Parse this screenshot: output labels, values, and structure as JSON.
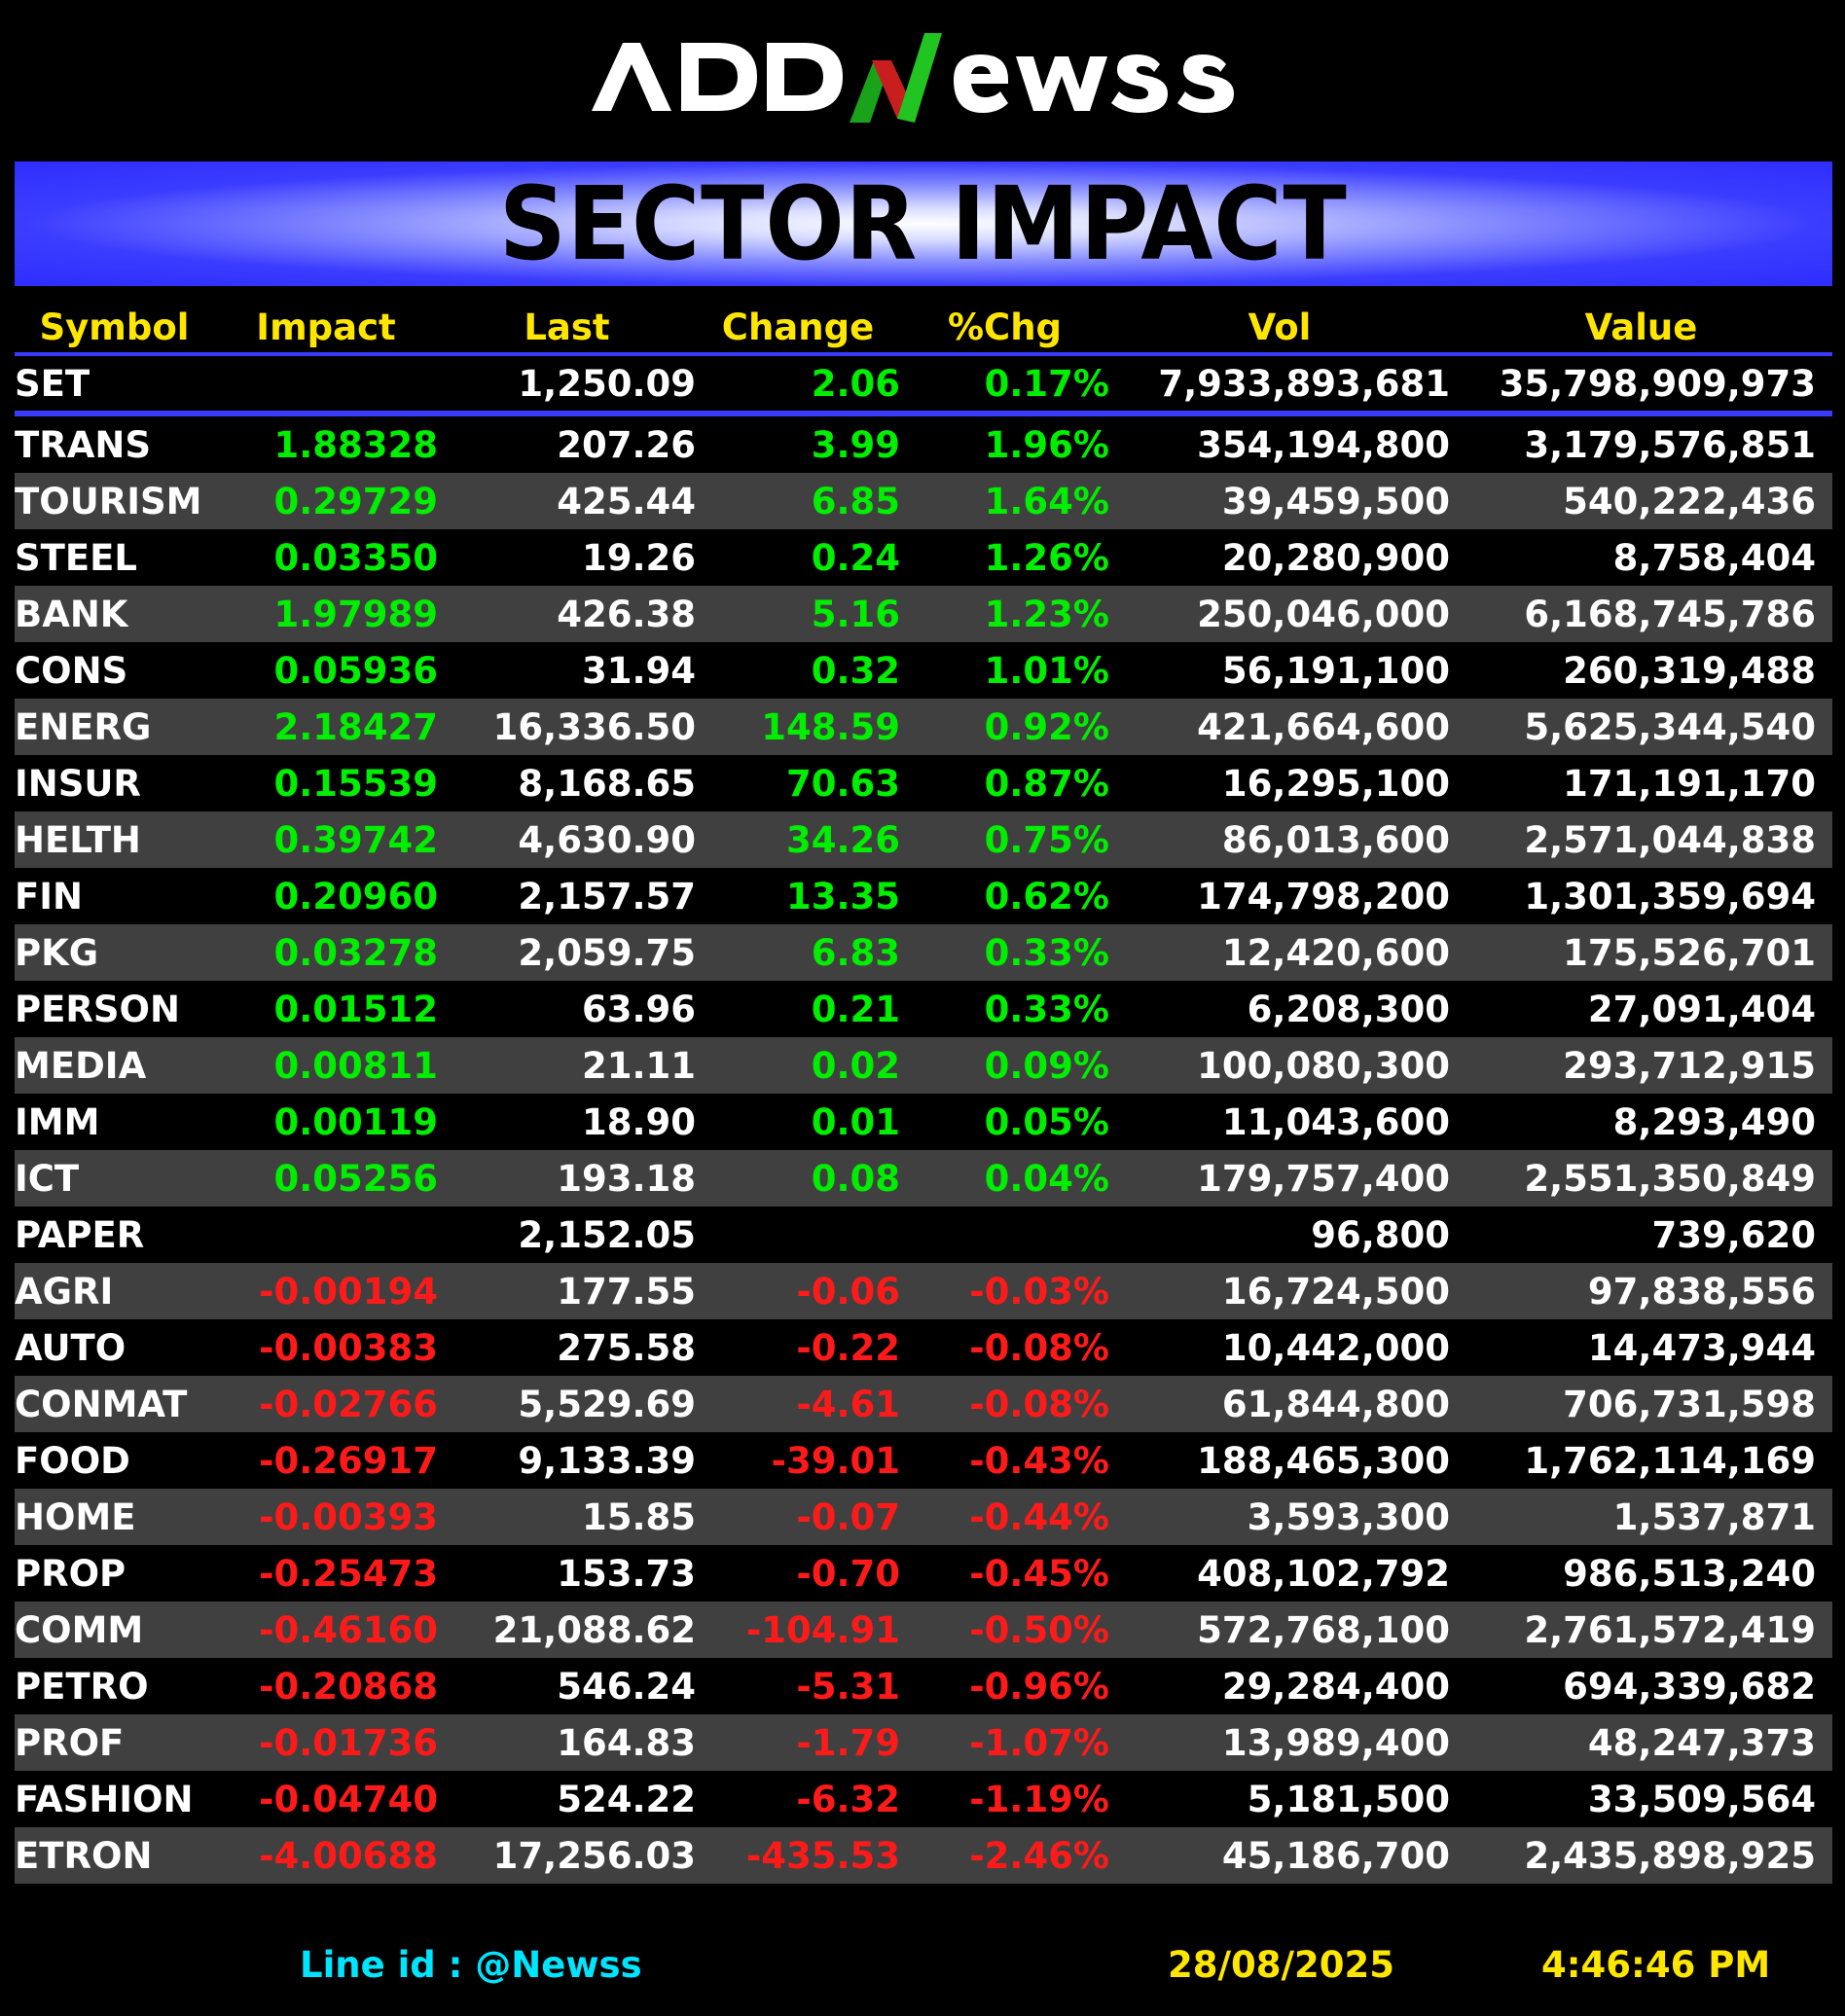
{
  "brand": {
    "name": "ADDNewss"
  },
  "banner": {
    "title": "SECTOR IMPACT"
  },
  "columns": [
    "Symbol",
    "Impact",
    "Last",
    "Change",
    "%Chg",
    "Vol",
    "Value"
  ],
  "index_row": {
    "symbol": "SET",
    "impact": "",
    "last": "1,250.09",
    "change": "2.06",
    "pct": "0.17%",
    "vol": "7,933,893,681",
    "value": "35,798,909,973"
  },
  "rows": [
    {
      "symbol": "TRANS",
      "impact": "1.88328",
      "last": "207.26",
      "change": "3.99",
      "pct": "1.96%",
      "vol": "354,194,800",
      "value": "3,179,576,851",
      "dir": "pos"
    },
    {
      "symbol": "TOURISM",
      "impact": "0.29729",
      "last": "425.44",
      "change": "6.85",
      "pct": "1.64%",
      "vol": "39,459,500",
      "value": "540,222,436",
      "dir": "pos"
    },
    {
      "symbol": "STEEL",
      "impact": "0.03350",
      "last": "19.26",
      "change": "0.24",
      "pct": "1.26%",
      "vol": "20,280,900",
      "value": "8,758,404",
      "dir": "pos"
    },
    {
      "symbol": "BANK",
      "impact": "1.97989",
      "last": "426.38",
      "change": "5.16",
      "pct": "1.23%",
      "vol": "250,046,000",
      "value": "6,168,745,786",
      "dir": "pos"
    },
    {
      "symbol": "CONS",
      "impact": "0.05936",
      "last": "31.94",
      "change": "0.32",
      "pct": "1.01%",
      "vol": "56,191,100",
      "value": "260,319,488",
      "dir": "pos"
    },
    {
      "symbol": "ENERG",
      "impact": "2.18427",
      "last": "16,336.50",
      "change": "148.59",
      "pct": "0.92%",
      "vol": "421,664,600",
      "value": "5,625,344,540",
      "dir": "pos"
    },
    {
      "symbol": "INSUR",
      "impact": "0.15539",
      "last": "8,168.65",
      "change": "70.63",
      "pct": "0.87%",
      "vol": "16,295,100",
      "value": "171,191,170",
      "dir": "pos"
    },
    {
      "symbol": "HELTH",
      "impact": "0.39742",
      "last": "4,630.90",
      "change": "34.26",
      "pct": "0.75%",
      "vol": "86,013,600",
      "value": "2,571,044,838",
      "dir": "pos"
    },
    {
      "symbol": "FIN",
      "impact": "0.20960",
      "last": "2,157.57",
      "change": "13.35",
      "pct": "0.62%",
      "vol": "174,798,200",
      "value": "1,301,359,694",
      "dir": "pos"
    },
    {
      "symbol": "PKG",
      "impact": "0.03278",
      "last": "2,059.75",
      "change": "6.83",
      "pct": "0.33%",
      "vol": "12,420,600",
      "value": "175,526,701",
      "dir": "pos"
    },
    {
      "symbol": "PERSON",
      "impact": "0.01512",
      "last": "63.96",
      "change": "0.21",
      "pct": "0.33%",
      "vol": "6,208,300",
      "value": "27,091,404",
      "dir": "pos"
    },
    {
      "symbol": "MEDIA",
      "impact": "0.00811",
      "last": "21.11",
      "change": "0.02",
      "pct": "0.09%",
      "vol": "100,080,300",
      "value": "293,712,915",
      "dir": "pos"
    },
    {
      "symbol": "IMM",
      "impact": "0.00119",
      "last": "18.90",
      "change": "0.01",
      "pct": "0.05%",
      "vol": "11,043,600",
      "value": "8,293,490",
      "dir": "pos"
    },
    {
      "symbol": "ICT",
      "impact": "0.05256",
      "last": "193.18",
      "change": "0.08",
      "pct": "0.04%",
      "vol": "179,757,400",
      "value": "2,551,350,849",
      "dir": "pos"
    },
    {
      "symbol": "PAPER",
      "impact": "",
      "last": "2,152.05",
      "change": "",
      "pct": "",
      "vol": "96,800",
      "value": "739,620",
      "dir": "flat"
    },
    {
      "symbol": "AGRI",
      "impact": "-0.00194",
      "last": "177.55",
      "change": "-0.06",
      "pct": "-0.03%",
      "vol": "16,724,500",
      "value": "97,838,556",
      "dir": "neg"
    },
    {
      "symbol": "AUTO",
      "impact": "-0.00383",
      "last": "275.58",
      "change": "-0.22",
      "pct": "-0.08%",
      "vol": "10,442,000",
      "value": "14,473,944",
      "dir": "neg"
    },
    {
      "symbol": "CONMAT",
      "impact": "-0.02766",
      "last": "5,529.69",
      "change": "-4.61",
      "pct": "-0.08%",
      "vol": "61,844,800",
      "value": "706,731,598",
      "dir": "neg"
    },
    {
      "symbol": "FOOD",
      "impact": "-0.26917",
      "last": "9,133.39",
      "change": "-39.01",
      "pct": "-0.43%",
      "vol": "188,465,300",
      "value": "1,762,114,169",
      "dir": "neg"
    },
    {
      "symbol": "HOME",
      "impact": "-0.00393",
      "last": "15.85",
      "change": "-0.07",
      "pct": "-0.44%",
      "vol": "3,593,300",
      "value": "1,537,871",
      "dir": "neg"
    },
    {
      "symbol": "PROP",
      "impact": "-0.25473",
      "last": "153.73",
      "change": "-0.70",
      "pct": "-0.45%",
      "vol": "408,102,792",
      "value": "986,513,240",
      "dir": "neg"
    },
    {
      "symbol": "COMM",
      "impact": "-0.46160",
      "last": "21,088.62",
      "change": "-104.91",
      "pct": "-0.50%",
      "vol": "572,768,100",
      "value": "2,761,572,419",
      "dir": "neg"
    },
    {
      "symbol": "PETRO",
      "impact": "-0.20868",
      "last": "546.24",
      "change": "-5.31",
      "pct": "-0.96%",
      "vol": "29,284,400",
      "value": "694,339,682",
      "dir": "neg"
    },
    {
      "symbol": "PROF",
      "impact": "-0.01736",
      "last": "164.83",
      "change": "-1.79",
      "pct": "-1.07%",
      "vol": "13,989,400",
      "value": "48,247,373",
      "dir": "neg"
    },
    {
      "symbol": "FASHION",
      "impact": "-0.04740",
      "last": "524.22",
      "change": "-6.32",
      "pct": "-1.19%",
      "vol": "5,181,500",
      "value": "33,509,564",
      "dir": "neg"
    },
    {
      "symbol": "ETRON",
      "impact": "-4.00688",
      "last": "17,256.03",
      "change": "-435.53",
      "pct": "-2.46%",
      "vol": "45,186,700",
      "value": "2,435,898,925",
      "dir": "neg"
    }
  ],
  "footer": {
    "line_id": "Line id  : @Newss",
    "date": "28/08/2025",
    "time": "4:46:46 PM"
  },
  "colors": {
    "positive": "#00ee00",
    "negative": "#ff1a1a",
    "header": "#ffe600",
    "banner": "#2d2dff",
    "line_id": "#00e5ff",
    "alt_row": "#404040"
  }
}
